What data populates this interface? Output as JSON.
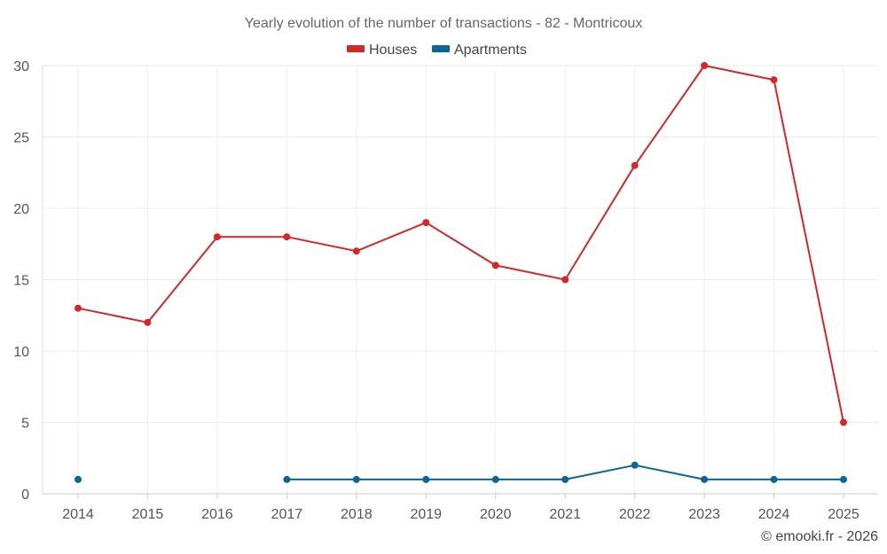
{
  "chart_data": {
    "type": "line",
    "title": "Yearly evolution of the number of transactions - 82 - Montricoux",
    "categories": [
      "2014",
      "2015",
      "2016",
      "2017",
      "2018",
      "2019",
      "2020",
      "2021",
      "2022",
      "2023",
      "2024",
      "2025"
    ],
    "ylim": [
      0,
      30
    ],
    "yticks": [
      0,
      5,
      10,
      15,
      20,
      25,
      30
    ],
    "grid": true,
    "legend_position": "top-center",
    "series": [
      {
        "name": "Houses",
        "color": "#d62728",
        "values": [
          13,
          12,
          18,
          18,
          17,
          19,
          16,
          15,
          23,
          30,
          29,
          5
        ]
      },
      {
        "name": "Apartments",
        "color": "#0a6598",
        "values": [
          1,
          null,
          null,
          1,
          1,
          1,
          1,
          1,
          2,
          1,
          1,
          1
        ]
      }
    ]
  },
  "credit": "© emooki.fr - 2026"
}
